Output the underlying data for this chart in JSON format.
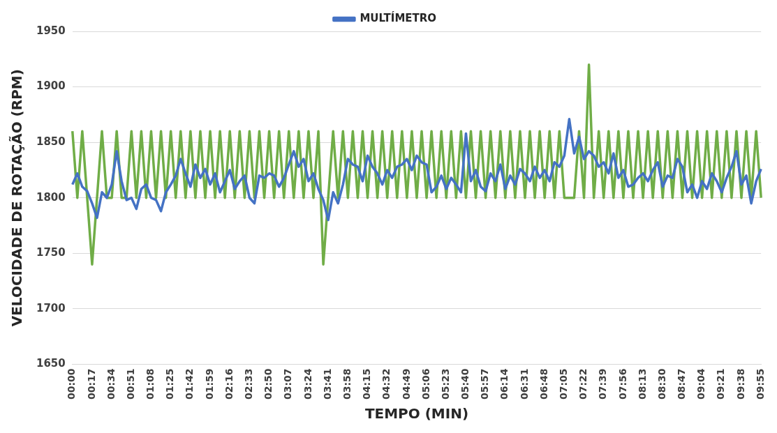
{
  "chart_data": {
    "type": "line",
    "xlabel": "TEMPO (MIN)",
    "ylabel": "VELOCIDADE DE ROTAÇÃO (RPM)",
    "ylim": [
      1650,
      1950
    ],
    "yticks": [
      1650,
      1700,
      1750,
      1800,
      1850,
      1900,
      1950
    ],
    "grid": "y",
    "legend": "top",
    "marker": "none",
    "line_style": "solid",
    "categories": [
      "00:00",
      null,
      null,
      null,
      "00:17",
      null,
      null,
      null,
      "00:34",
      null,
      null,
      null,
      "00:51",
      null,
      null,
      null,
      "01:08",
      null,
      null,
      null,
      "01:25",
      null,
      null,
      null,
      "01:42",
      null,
      null,
      null,
      "01:59",
      null,
      null,
      null,
      "02:16",
      null,
      null,
      null,
      "02:33",
      null,
      null,
      null,
      "02:50",
      null,
      null,
      null,
      "03:07",
      null,
      null,
      null,
      "03:24",
      null,
      null,
      null,
      "03:41",
      null,
      null,
      null,
      "03:58",
      null,
      null,
      null,
      "04:15",
      null,
      null,
      null,
      "04:32",
      null,
      null,
      null,
      "04:49",
      null,
      null,
      null,
      "05:06",
      null,
      null,
      null,
      "05:23",
      null,
      null,
      null,
      "05:40",
      null,
      null,
      null,
      "05:57",
      null,
      null,
      null,
      "06:14",
      null,
      null,
      null,
      "06:31",
      null,
      null,
      null,
      "06:48",
      null,
      null,
      null,
      "07:05",
      null,
      null,
      null,
      "07:22",
      null,
      null,
      null,
      "07:39",
      null,
      null,
      null,
      "07:56",
      null,
      null,
      null,
      "08:13",
      null,
      null,
      null,
      "08:30",
      null,
      null,
      null,
      "08:47",
      null,
      null,
      null,
      "09:04",
      null,
      null,
      null,
      "09:21",
      null,
      null,
      null,
      "09:38",
      null,
      null,
      null,
      "09:55"
    ],
    "series": [
      {
        "color": "#70ad47",
        "values": [
          1860,
          1800,
          1860,
          1800,
          1740,
          1800,
          1860,
          1800,
          1800,
          1860,
          1800,
          1800,
          1860,
          1800,
          1860,
          1800,
          1860,
          1800,
          1860,
          1800,
          1860,
          1800,
          1860,
          1800,
          1860,
          1800,
          1860,
          1800,
          1860,
          1800,
          1860,
          1800,
          1860,
          1800,
          1860,
          1800,
          1860,
          1800,
          1860,
          1800,
          1860,
          1800,
          1860,
          1800,
          1860,
          1800,
          1860,
          1800,
          1860,
          1800,
          1860,
          1740,
          1800,
          1860,
          1800,
          1860,
          1800,
          1860,
          1800,
          1860,
          1800,
          1860,
          1800,
          1860,
          1800,
          1860,
          1800,
          1860,
          1800,
          1860,
          1800,
          1860,
          1800,
          1860,
          1800,
          1860,
          1800,
          1860,
          1800,
          1860,
          1800,
          1860,
          1800,
          1860,
          1800,
          1860,
          1800,
          1860,
          1800,
          1860,
          1800,
          1860,
          1800,
          1860,
          1800,
          1860,
          1800,
          1860,
          1800,
          1860,
          1800,
          1800,
          1800,
          1860,
          1800,
          1920,
          1800,
          1860,
          1800,
          1860,
          1800,
          1860,
          1800,
          1860,
          1800,
          1860,
          1800,
          1860,
          1800,
          1860,
          1800,
          1860,
          1800,
          1860,
          1800,
          1860,
          1800,
          1860,
          1800,
          1860,
          1800,
          1860,
          1800,
          1860,
          1800,
          1860,
          1800,
          1860,
          1800,
          1860,
          1800
        ]
      },
      {
        "name": "MULTÍMETRO",
        "color": "#4472c4",
        "values": [
          1812,
          1822,
          1810,
          1806,
          1795,
          1782,
          1805,
          1800,
          1812,
          1842,
          1815,
          1798,
          1800,
          1790,
          1808,
          1812,
          1800,
          1798,
          1788,
          1805,
          1812,
          1820,
          1835,
          1822,
          1810,
          1830,
          1818,
          1826,
          1812,
          1822,
          1805,
          1815,
          1825,
          1808,
          1815,
          1820,
          1800,
          1795,
          1820,
          1818,
          1822,
          1820,
          1810,
          1818,
          1830,
          1842,
          1828,
          1835,
          1815,
          1822,
          1808,
          1798,
          1780,
          1805,
          1795,
          1812,
          1835,
          1830,
          1828,
          1815,
          1838,
          1828,
          1822,
          1812,
          1825,
          1818,
          1828,
          1830,
          1835,
          1825,
          1838,
          1832,
          1830,
          1805,
          1810,
          1820,
          1808,
          1818,
          1812,
          1805,
          1858,
          1815,
          1825,
          1810,
          1806,
          1822,
          1815,
          1830,
          1808,
          1820,
          1812,
          1826,
          1822,
          1815,
          1828,
          1818,
          1825,
          1815,
          1832,
          1828,
          1838,
          1871,
          1840,
          1855,
          1835,
          1842,
          1838,
          1828,
          1832,
          1822,
          1840,
          1818,
          1825,
          1810,
          1812,
          1818,
          1822,
          1815,
          1825,
          1832,
          1810,
          1820,
          1818,
          1835,
          1828,
          1805,
          1812,
          1800,
          1815,
          1808,
          1822,
          1815,
          1805,
          1818,
          1828,
          1842,
          1812,
          1820,
          1795,
          1815,
          1826
        ]
      }
    ]
  }
}
